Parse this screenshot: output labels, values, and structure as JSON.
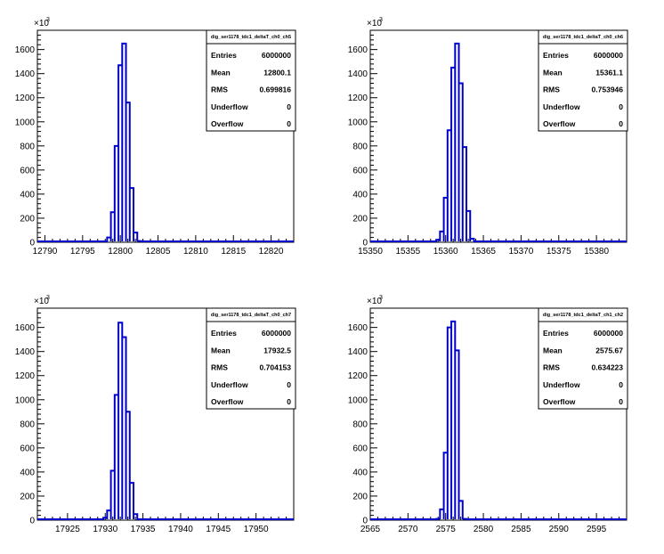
{
  "chart_data": [
    {
      "type": "bar",
      "title": "",
      "xlabel": "",
      "ylabel": "",
      "y_multiplier_label": "×10",
      "y_multiplier_exp": "3",
      "xlim": [
        12789,
        12823
      ],
      "ylim": [
        0,
        1760
      ],
      "x_ticks": [
        12790,
        12795,
        12800,
        12805,
        12810,
        12815,
        12820
      ],
      "y_ticks": [
        0,
        200,
        400,
        600,
        800,
        1000,
        1200,
        1400,
        1600
      ],
      "bin_width": 0.5,
      "bins": [
        {
          "x": 12798.5,
          "value": 40
        },
        {
          "x": 12799.0,
          "value": 250
        },
        {
          "x": 12799.5,
          "value": 800
        },
        {
          "x": 12800.0,
          "value": 1470
        },
        {
          "x": 12800.5,
          "value": 1650
        },
        {
          "x": 12801.0,
          "value": 1160
        },
        {
          "x": 12801.5,
          "value": 450
        },
        {
          "x": 12802.0,
          "value": 80
        },
        {
          "x": 12802.5,
          "value": 10
        }
      ],
      "color": "#0000cc",
      "stats": {
        "name": "dig_ser1178_tdc1_deltaT_ch0_ch5",
        "rows": [
          {
            "label": "Entries",
            "value": "6000000"
          },
          {
            "label": "Mean",
            "value": "12800.1"
          },
          {
            "label": "RMS",
            "value": "0.699816"
          },
          {
            "label": "Underflow",
            "value": "0"
          },
          {
            "label": "Overflow",
            "value": "0"
          }
        ]
      }
    },
    {
      "type": "bar",
      "title": "",
      "xlabel": "",
      "ylabel": "",
      "y_multiplier_label": "×10",
      "y_multiplier_exp": "3",
      "xlim": [
        15350,
        15384
      ],
      "ylim": [
        0,
        1760
      ],
      "x_ticks": [
        15350,
        15355,
        15360,
        15365,
        15370,
        15375,
        15380
      ],
      "y_ticks": [
        0,
        200,
        400,
        600,
        800,
        1000,
        1200,
        1400,
        1600
      ],
      "bin_width": 0.5,
      "bins": [
        {
          "x": 15359.0,
          "value": 20
        },
        {
          "x": 15359.5,
          "value": 90
        },
        {
          "x": 15360.0,
          "value": 370
        },
        {
          "x": 15360.5,
          "value": 930
        },
        {
          "x": 15361.0,
          "value": 1450
        },
        {
          "x": 15361.5,
          "value": 1650
        },
        {
          "x": 15362.0,
          "value": 1320
        },
        {
          "x": 15362.5,
          "value": 790
        },
        {
          "x": 15363.0,
          "value": 260
        },
        {
          "x": 15363.5,
          "value": 30
        }
      ],
      "color": "#0000cc",
      "stats": {
        "name": "dig_ser1178_tdc1_deltaT_ch0_ch6",
        "rows": [
          {
            "label": "Entries",
            "value": "6000000"
          },
          {
            "label": "Mean",
            "value": "15361.1"
          },
          {
            "label": "RMS",
            "value": "0.753946"
          },
          {
            "label": "Underflow",
            "value": "0"
          },
          {
            "label": "Overflow",
            "value": "0"
          }
        ]
      }
    },
    {
      "type": "bar",
      "title": "",
      "xlabel": "",
      "ylabel": "",
      "y_multiplier_label": "×10",
      "y_multiplier_exp": "3",
      "xlim": [
        17921,
        17955
      ],
      "ylim": [
        0,
        1760
      ],
      "x_ticks": [
        17925,
        17930,
        17935,
        17940,
        17945,
        17950
      ],
      "y_ticks": [
        0,
        200,
        400,
        600,
        800,
        1000,
        1200,
        1400,
        1600
      ],
      "bin_width": 0.5,
      "bins": [
        {
          "x": 17930.0,
          "value": 20
        },
        {
          "x": 17930.5,
          "value": 80
        },
        {
          "x": 17931.0,
          "value": 410
        },
        {
          "x": 17931.5,
          "value": 1040
        },
        {
          "x": 17932.0,
          "value": 1640
        },
        {
          "x": 17932.5,
          "value": 1520
        },
        {
          "x": 17933.0,
          "value": 900
        },
        {
          "x": 17933.5,
          "value": 310
        },
        {
          "x": 17934.0,
          "value": 50
        }
      ],
      "color": "#0000cc",
      "stats": {
        "name": "dig_ser1178_tdc1_deltaT_ch0_ch7",
        "rows": [
          {
            "label": "Entries",
            "value": "6000000"
          },
          {
            "label": "Mean",
            "value": "17932.5"
          },
          {
            "label": "RMS",
            "value": "0.704153"
          },
          {
            "label": "Underflow",
            "value": "0"
          },
          {
            "label": "Overflow",
            "value": "0"
          }
        ]
      }
    },
    {
      "type": "bar",
      "title": "",
      "xlabel": "",
      "ylabel": "",
      "y_multiplier_label": "×10",
      "y_multiplier_exp": "3",
      "xlim": [
        2565,
        2599
      ],
      "ylim": [
        0,
        1760
      ],
      "x_ticks": [
        2565,
        2570,
        2575,
        2580,
        2585,
        2590,
        2595
      ],
      "y_ticks": [
        0,
        200,
        400,
        600,
        800,
        1000,
        1200,
        1400,
        1600
      ],
      "bin_width": 0.5,
      "bins": [
        {
          "x": 2574.0,
          "value": 10
        },
        {
          "x": 2574.5,
          "value": 90
        },
        {
          "x": 2575.0,
          "value": 560
        },
        {
          "x": 2575.5,
          "value": 1600
        },
        {
          "x": 2576.0,
          "value": 1650
        },
        {
          "x": 2576.5,
          "value": 1410
        },
        {
          "x": 2577.0,
          "value": 160
        },
        {
          "x": 2577.5,
          "value": 10
        }
      ],
      "color": "#0000cc",
      "stats": {
        "name": "dig_ser1178_tdc1_deltaT_ch1_ch2",
        "rows": [
          {
            "label": "Entries",
            "value": "6000000"
          },
          {
            "label": "Mean",
            "value": "2575.67"
          },
          {
            "label": "RMS",
            "value": "0.634223"
          },
          {
            "label": "Underflow",
            "value": "0"
          },
          {
            "label": "Overflow",
            "value": "0"
          }
        ]
      }
    }
  ]
}
